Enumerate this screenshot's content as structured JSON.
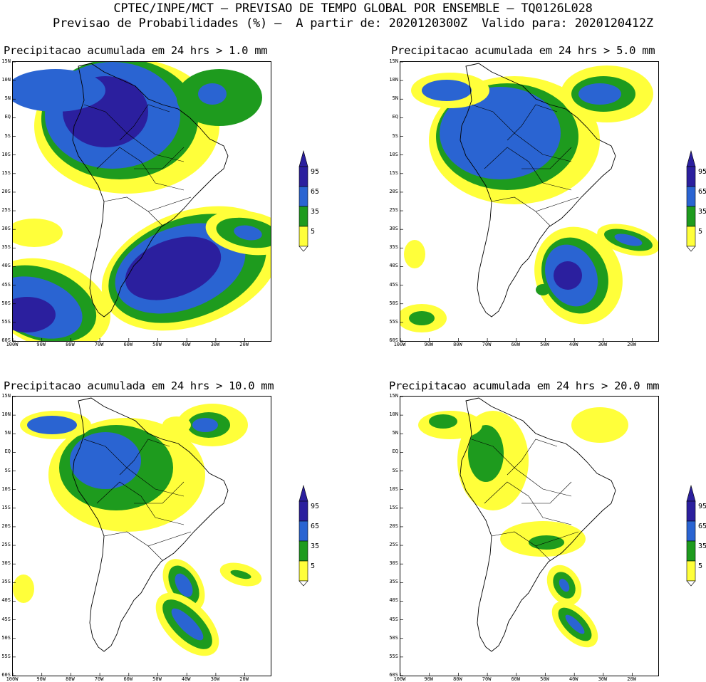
{
  "header": {
    "line1": "CPTEC/INPE/MCT – PREVISAO DE TEMPO GLOBAL POR ENSEMBLE – TQ0126L028",
    "line2": "Previsao de Probabilidades (%) –  A partir de: 2020120300Z  Valido para: 2020120412Z"
  },
  "panels": [
    {
      "title": "Precipitacao acumulada em 24 hrs > 1.0 mm"
    },
    {
      "title": "Precipitacao acumulada em 24 hrs > 5.0 mm"
    },
    {
      "title": "Precipitacao acumulada em 24 hrs > 10.0 mm"
    },
    {
      "title": "Precipitacao acumulada em 24 hrs > 20.0 mm"
    }
  ],
  "lat_labels": [
    "15N",
    "10N",
    "5N",
    "EQ",
    "5S",
    "10S",
    "15S",
    "20S",
    "25S",
    "30S",
    "35S",
    "40S",
    "45S",
    "50S",
    "55S",
    "60S"
  ],
  "lon_labels": [
    "100W",
    "90W",
    "80W",
    "70W",
    "60W",
    "50W",
    "40W",
    "30W",
    "20W"
  ],
  "colorbar": {
    "labels": [
      "95",
      "65",
      "35",
      "5"
    ],
    "colors": {
      "c5": "#ffff3a",
      "c35": "#1e9b1e",
      "c65": "#2a64d2",
      "c95": "#2b1f9e"
    }
  }
}
